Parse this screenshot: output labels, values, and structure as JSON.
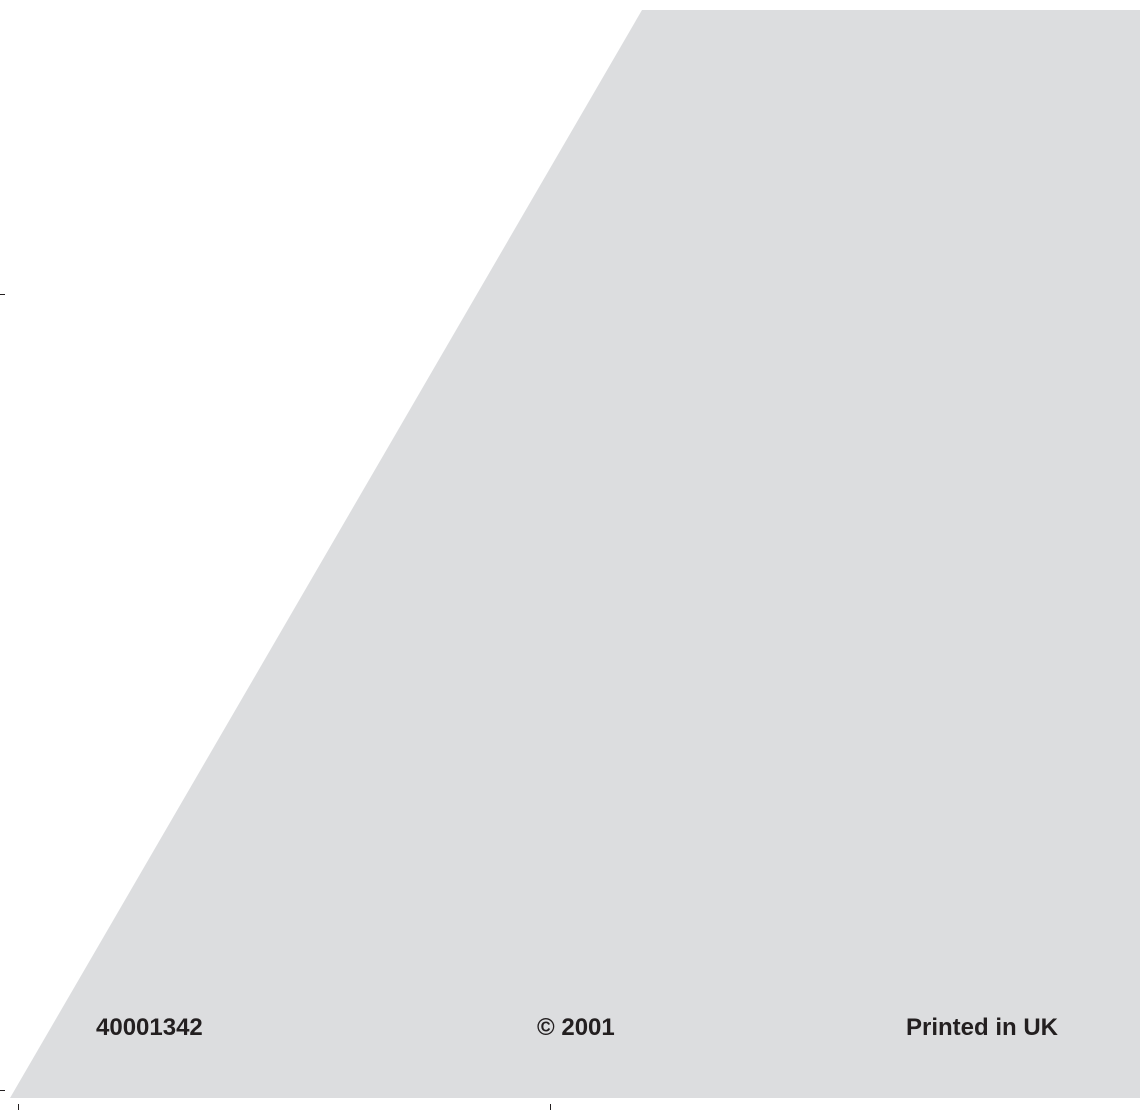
{
  "page": {
    "background_color": "#ffffff",
    "panel_color": "#dcdddf",
    "text_color": "#231f20"
  },
  "footer": {
    "product_code": "40001342",
    "copyright": "© 2001",
    "printed": "Printed in UK"
  }
}
